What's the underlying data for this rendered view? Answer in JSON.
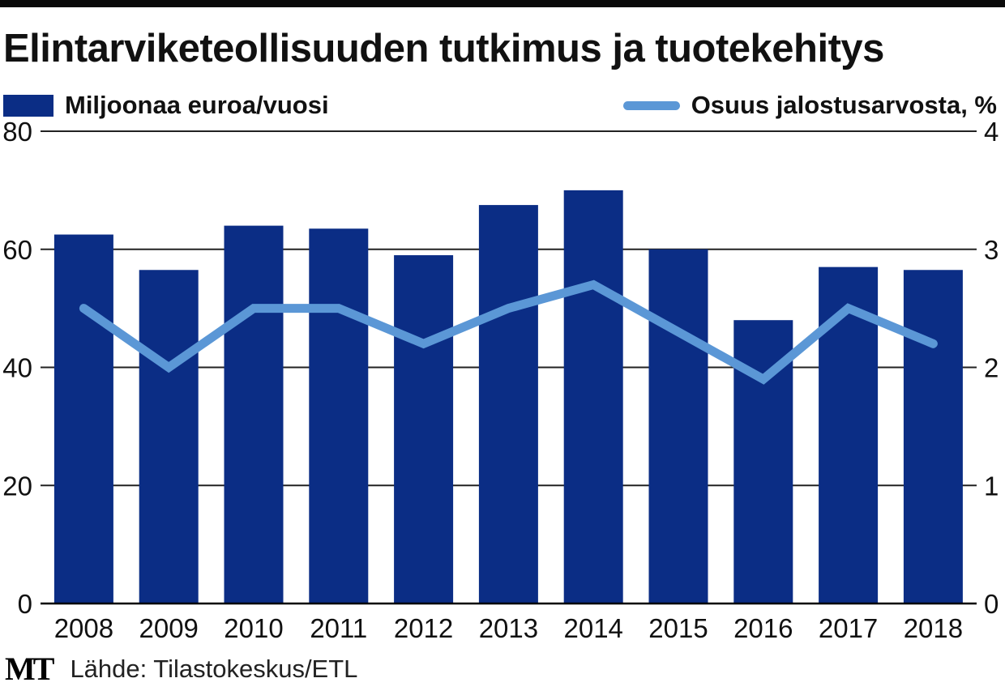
{
  "title": "Elintarviketeollisuuden tutkimus ja tuotekehitys",
  "legend": {
    "bars_label": "Miljoonaa euroa/vuosi",
    "line_label": "Osuus jalostusarvosta, %"
  },
  "source": "Lähde: Tilastokeskus/ETL",
  "logo": "MT",
  "colors": {
    "bar": "#0b2d85",
    "line": "#5b97d6",
    "grid": "#222222",
    "text": "#111111"
  },
  "chart_data": {
    "type": "bar",
    "title": "Elintarviketeollisuuden tutkimus ja tuotekehitys",
    "categories": [
      "2008",
      "2009",
      "2010",
      "2011",
      "2012",
      "2013",
      "2014",
      "2015",
      "2016",
      "2017",
      "2018"
    ],
    "series": [
      {
        "name": "Miljoonaa euroa/vuosi",
        "type": "bar",
        "axis": "left",
        "values": [
          62.5,
          56.5,
          64,
          63.5,
          59,
          67.5,
          70,
          60,
          48,
          57,
          56.5
        ]
      },
      {
        "name": "Osuus jalostusarvosta, %",
        "type": "line",
        "axis": "right",
        "values": [
          2.5,
          2.0,
          2.5,
          2.5,
          2.2,
          2.5,
          2.7,
          2.3,
          1.9,
          2.5,
          2.2
        ]
      }
    ],
    "y_left": {
      "lim": [
        0,
        80
      ],
      "ticks": [
        "0",
        "20",
        "40",
        "60",
        "80"
      ]
    },
    "y_right": {
      "lim": [
        0,
        4
      ],
      "ticks": [
        "0",
        "1",
        "2",
        "3",
        "4"
      ]
    },
    "grid": true
  }
}
